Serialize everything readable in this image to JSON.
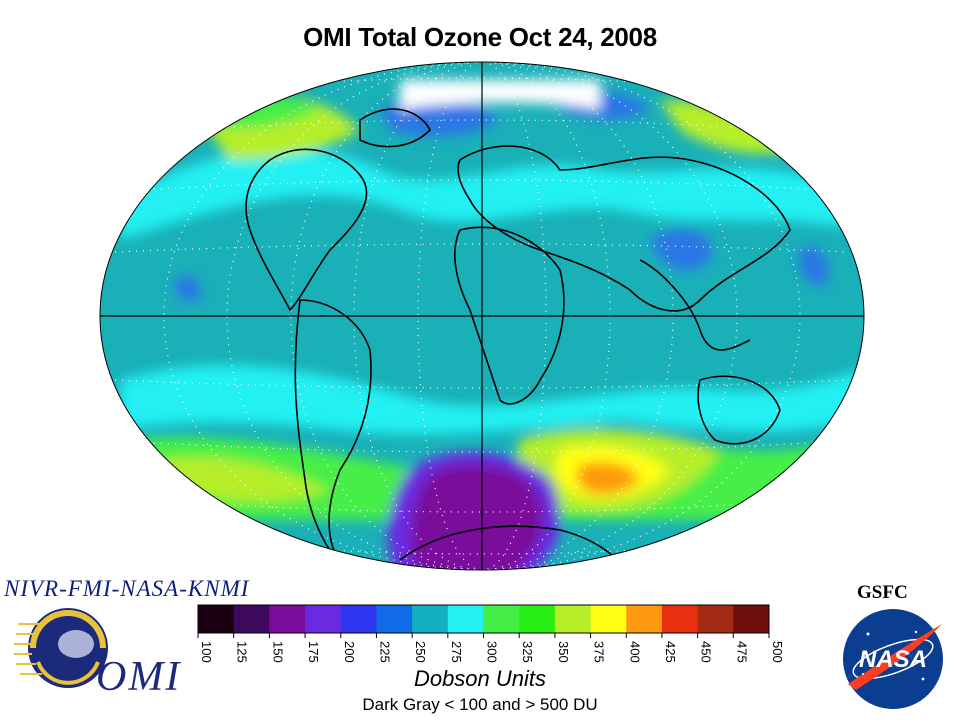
{
  "title": "OMI Total Ozone Oct 24, 2008",
  "consortium": "NIVR-FMI-NASA-KNMI",
  "gsfc": "GSFC",
  "omi_logo_text": "OMI",
  "nasa_logo_text": "NASA",
  "colorbar": {
    "ticks": [
      "100",
      "125",
      "150",
      "175",
      "200",
      "225",
      "250",
      "275",
      "300",
      "325",
      "350",
      "375",
      "400",
      "425",
      "450",
      "475",
      "500"
    ],
    "colors": [
      "#1a0010",
      "#3d0a5e",
      "#7a0c9a",
      "#6a2be0",
      "#2f36f0",
      "#0f6be6",
      "#15b0c0",
      "#22f0f2",
      "#44ee44",
      "#27ee12",
      "#b6ee2a",
      "#ffff14",
      "#ff9a10",
      "#e63010",
      "#a52a12",
      "#6e0f0c"
    ]
  },
  "units_label": "Dobson Units",
  "note": "Dark Gray < 100 and > 500 DU",
  "map": {
    "projection": "hammer",
    "grid": true,
    "colors": {
      "background": "#1ab0b8",
      "cyan_band": "#22f0f2",
      "blue": "#2a76e6",
      "green": "#46ee46",
      "yellow_green": "#b6ee2a",
      "yellow": "#ffff14",
      "orange": "#ff9a10",
      "purple": "#7a0c9a",
      "violet": "#6a2be0",
      "polar_white": "#ffffff"
    }
  }
}
